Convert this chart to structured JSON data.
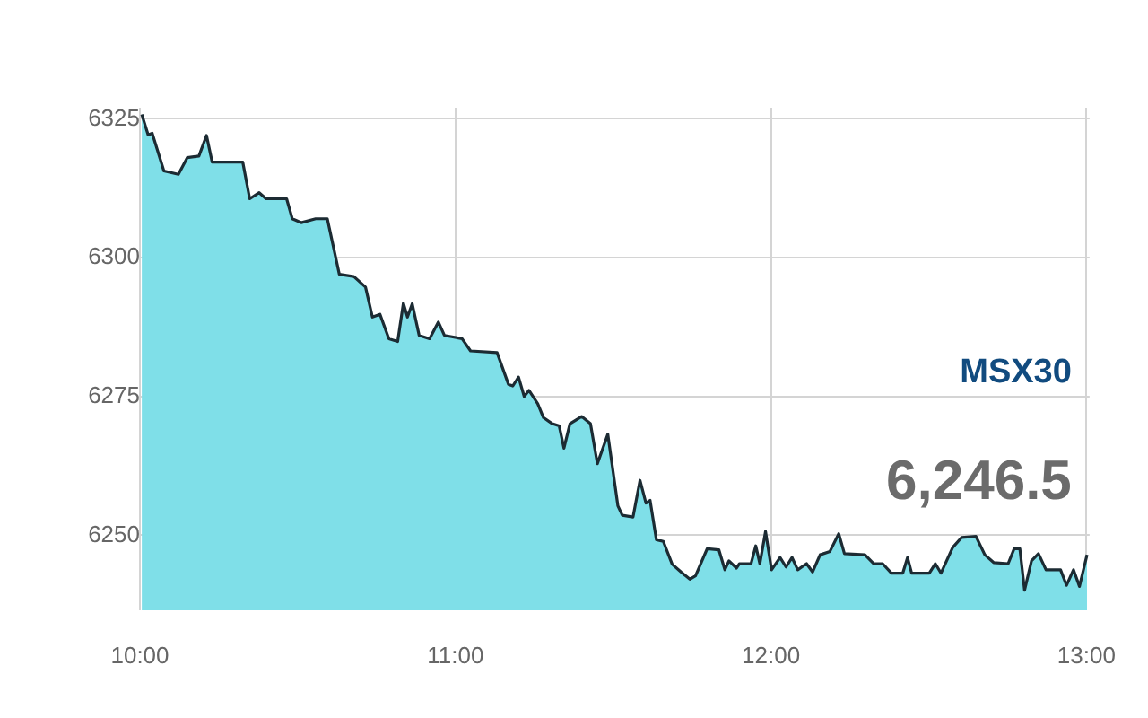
{
  "chart_data": {
    "type": "area",
    "annotations": [
      "MSX30",
      "6,246.5"
    ],
    "x": [
      10.006,
      10.026,
      10.039,
      10.076,
      10.122,
      10.15,
      10.187,
      10.211,
      10.229,
      10.326,
      10.348,
      10.378,
      10.4,
      10.465,
      10.483,
      10.511,
      10.557,
      10.594,
      10.632,
      10.678,
      10.715,
      10.737,
      10.761,
      10.789,
      10.817,
      10.835,
      10.848,
      10.863,
      10.885,
      10.918,
      10.946,
      10.965,
      11.021,
      11.048,
      11.132,
      11.168,
      11.182,
      11.2,
      11.218,
      11.233,
      11.261,
      11.279,
      11.307,
      11.329,
      11.344,
      11.363,
      11.4,
      11.428,
      11.45,
      11.483,
      11.515,
      11.529,
      11.563,
      11.585,
      11.604,
      11.617,
      11.637,
      11.659,
      11.687,
      11.715,
      11.743,
      11.761,
      11.798,
      11.835,
      11.854,
      11.867,
      11.891,
      11.9,
      11.937,
      11.952,
      11.965,
      11.983,
      12.002,
      12.029,
      12.048,
      12.067,
      12.085,
      12.113,
      12.132,
      12.156,
      12.187,
      12.215,
      12.233,
      12.298,
      12.326,
      12.354,
      12.382,
      12.418,
      12.433,
      12.446,
      12.502,
      12.521,
      12.539,
      12.576,
      12.604,
      12.65,
      12.678,
      12.706,
      12.752,
      12.771,
      12.789,
      12.804,
      12.826,
      12.848,
      12.872,
      12.918,
      12.937,
      12.959,
      12.978,
      13.002
    ],
    "series": [
      {
        "color": "#7fdfe8",
        "values": [
          6325.8,
          6322.1,
          6322.4,
          6315.6,
          6315,
          6318,
          6318.3,
          6322,
          6317.2,
          6317.2,
          6310.6,
          6311.7,
          6310.6,
          6310.6,
          6307,
          6306.3,
          6307,
          6307,
          6297,
          6296.6,
          6294.7,
          6289.3,
          6289.8,
          6285.4,
          6284.9,
          6291.8,
          6289.3,
          6291.7,
          6286,
          6285.4,
          6288.4,
          6286,
          6285.4,
          6283.2,
          6282.9,
          6277.2,
          6276.9,
          6278.5,
          6275,
          6276.1,
          6273.7,
          6271.2,
          6270.1,
          6269.7,
          6265.7,
          6270.1,
          6271.4,
          6270.1,
          6262.9,
          6268.2,
          6255.3,
          6253.6,
          6253.3,
          6259.9,
          6255.8,
          6256.3,
          6249.2,
          6248.9,
          6244.8,
          6243.4,
          6242.1,
          6242.7,
          6247.6,
          6247.4,
          6243.8,
          6245.4,
          6244.1,
          6244.9,
          6244.9,
          6248.1,
          6244.9,
          6250.7,
          6243.8,
          6246,
          6244.3,
          6246,
          6243.8,
          6244.9,
          6243.4,
          6246.5,
          6247.1,
          6250.3,
          6246.7,
          6246.5,
          6244.9,
          6244.9,
          6243.2,
          6243.2,
          6246,
          6243.2,
          6243.2,
          6244.9,
          6243.2,
          6247.8,
          6249.6,
          6249.8,
          6246.5,
          6245.1,
          6244.9,
          6247.6,
          6247.6,
          6240.1,
          6245.4,
          6246.7,
          6243.8,
          6243.8,
          6241,
          6243.8,
          6240.8,
          6246.5
        ]
      }
    ],
    "xlim": [
      10,
      13.01
    ],
    "xticks": [
      {
        "value": 10,
        "label": "10:00"
      },
      {
        "value": 11,
        "label": "11:00"
      },
      {
        "value": 12,
        "label": "12:00"
      },
      {
        "value": 13,
        "label": "13:00"
      }
    ],
    "ylim": [
      6236.5,
      6327
    ],
    "yticks": [
      6250,
      6275,
      6300,
      6325
    ],
    "grid": true,
    "legend": false
  }
}
